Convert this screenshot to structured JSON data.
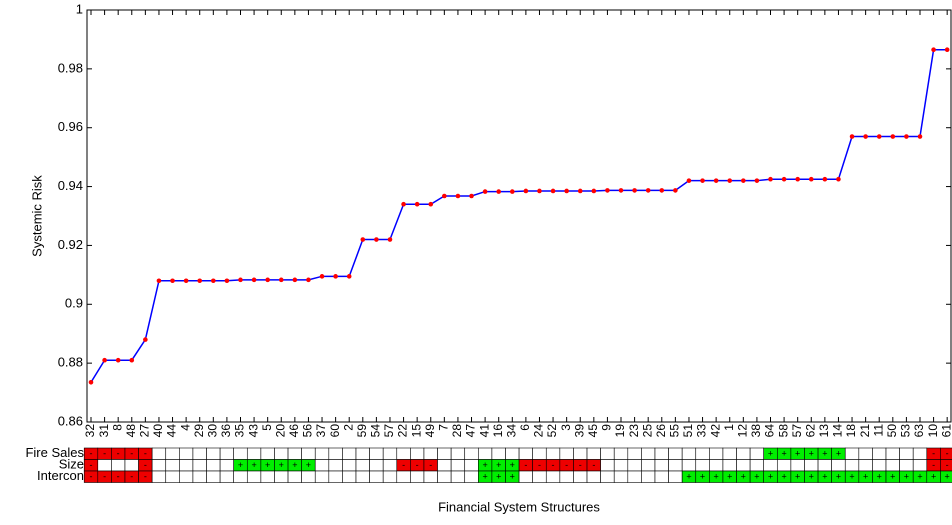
{
  "chart_data": {
    "type": "line",
    "y_label": "Systemic Risk",
    "x_label": "Financial System Structures",
    "categories": [
      "32",
      "31",
      "8",
      "48",
      "27",
      "40",
      "44",
      "4",
      "29",
      "30",
      "36",
      "35",
      "43",
      "5",
      "20",
      "46",
      "56",
      "37",
      "60",
      "2",
      "59",
      "54",
      "57",
      "22",
      "15",
      "49",
      "7",
      "28",
      "47",
      "41",
      "16",
      "34",
      "6",
      "24",
      "52",
      "3",
      "39",
      "45",
      "9",
      "19",
      "23",
      "25",
      "26",
      "55",
      "51",
      "33",
      "42",
      "1",
      "12",
      "38",
      "64",
      "58",
      "57",
      "62",
      "13",
      "14",
      "18",
      "21",
      "11",
      "50",
      "53",
      "63",
      "10",
      "61"
    ],
    "values": [
      0.8735,
      0.881,
      0.881,
      0.881,
      0.888,
      0.908,
      0.908,
      0.908,
      0.908,
      0.908,
      0.908,
      0.9083,
      0.9083,
      0.9083,
      0.9083,
      0.9083,
      0.9083,
      0.9095,
      0.9095,
      0.9095,
      0.922,
      0.922,
      0.922,
      0.934,
      0.934,
      0.934,
      0.9368,
      0.9368,
      0.9368,
      0.9383,
      0.9383,
      0.9383,
      0.9385,
      0.9385,
      0.9385,
      0.9385,
      0.9385,
      0.9385,
      0.9387,
      0.9387,
      0.9387,
      0.9387,
      0.9387,
      0.9387,
      0.942,
      0.942,
      0.942,
      0.942,
      0.942,
      0.942,
      0.9425,
      0.9425,
      0.9425,
      0.9425,
      0.9425,
      0.9425,
      0.957,
      0.957,
      0.957,
      0.957,
      0.957,
      0.957,
      0.9865,
      0.9865
    ],
    "color": "#0000ff",
    "marker_color": "#ff0000",
    "ylim": [
      0.86,
      1
    ],
    "yticks": [
      0.86,
      0.88,
      0.9,
      0.92,
      0.94,
      0.96,
      0.98,
      1
    ],
    "sign_colors": {
      "+": "#00ee00",
      "-": "#ee0000"
    },
    "sign_rows": [
      {
        "label": "Fire Sales",
        "cells": [
          "-",
          "-",
          "-",
          "-",
          "-",
          null,
          null,
          null,
          null,
          null,
          null,
          null,
          null,
          null,
          null,
          null,
          null,
          null,
          null,
          null,
          null,
          null,
          null,
          null,
          null,
          null,
          null,
          null,
          null,
          null,
          null,
          null,
          null,
          null,
          null,
          null,
          null,
          null,
          null,
          null,
          null,
          null,
          null,
          null,
          null,
          null,
          null,
          null,
          null,
          null,
          "+",
          "+",
          "+",
          "+",
          "+",
          "+",
          null,
          null,
          null,
          null,
          null,
          null,
          "-",
          "-"
        ]
      },
      {
        "label": "Size",
        "cells": [
          "-",
          null,
          null,
          null,
          "-",
          null,
          null,
          null,
          null,
          null,
          null,
          "+",
          "+",
          "+",
          "+",
          "+",
          "+",
          null,
          null,
          null,
          null,
          null,
          null,
          "-",
          "-",
          "-",
          null,
          null,
          null,
          "+",
          "+",
          "+",
          "-",
          "-",
          "-",
          "-",
          "-",
          "-",
          null,
          null,
          null,
          null,
          null,
          null,
          null,
          null,
          null,
          null,
          null,
          null,
          null,
          null,
          null,
          null,
          null,
          null,
          null,
          null,
          null,
          null,
          null,
          null,
          "-",
          "-"
        ]
      },
      {
        "label": "Intercon",
        "cells": [
          "-",
          "-",
          "-",
          "-",
          "-",
          null,
          null,
          null,
          null,
          null,
          null,
          null,
          null,
          null,
          null,
          null,
          null,
          null,
          null,
          null,
          null,
          null,
          null,
          null,
          null,
          null,
          null,
          null,
          null,
          "+",
          "+",
          "+",
          null,
          null,
          null,
          null,
          null,
          null,
          null,
          null,
          null,
          null,
          null,
          null,
          "+",
          "+",
          "+",
          "+",
          "+",
          "+",
          "+",
          "+",
          "+",
          "+",
          "+",
          "+",
          "+",
          "+",
          "+",
          "+",
          "+",
          "+",
          "+",
          "+"
        ]
      }
    ]
  }
}
